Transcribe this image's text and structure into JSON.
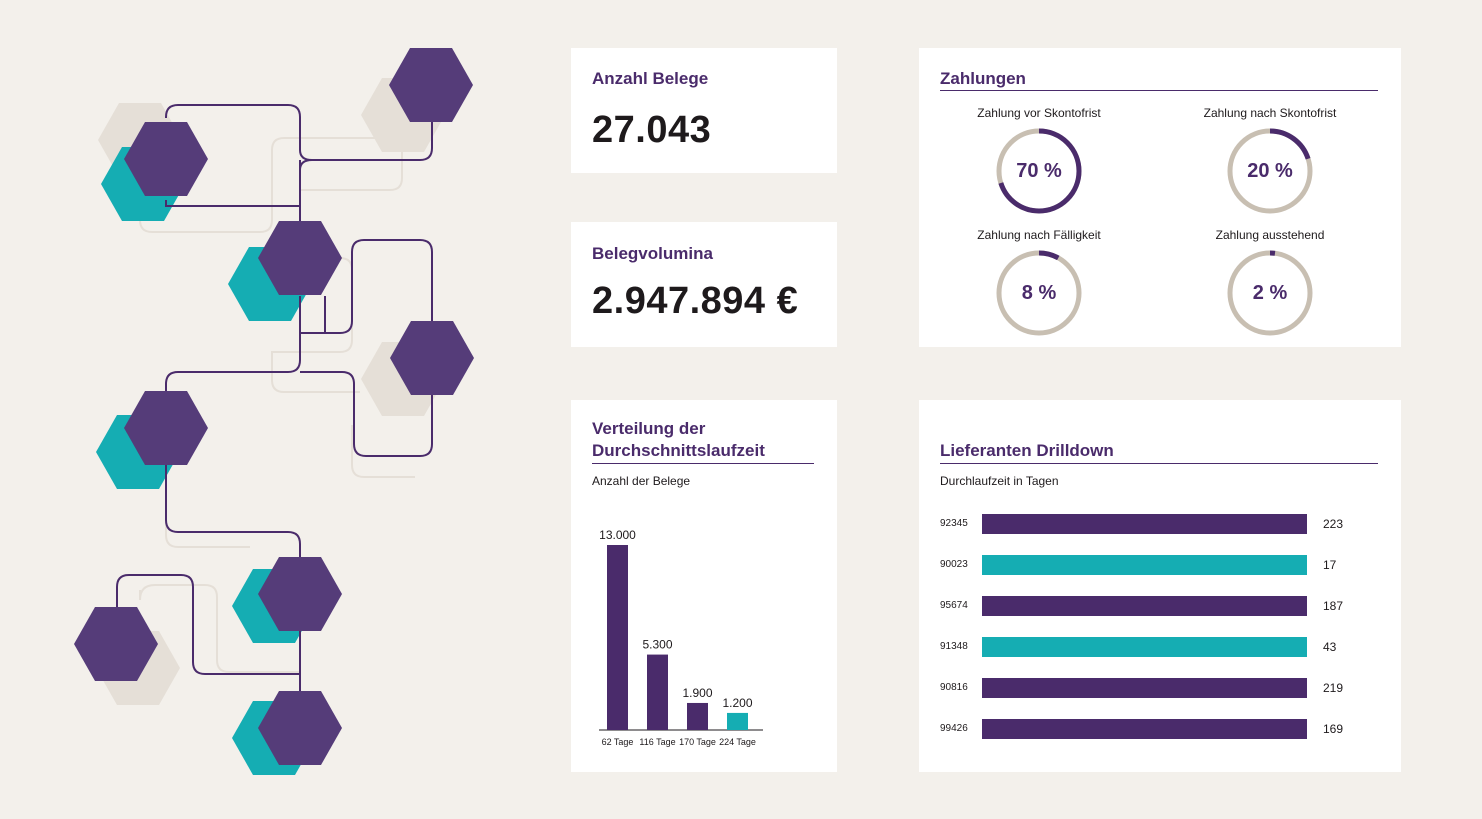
{
  "colors": {
    "purple": "#4a2b6b",
    "teal": "#15adb3",
    "beige": "#c8bfb2",
    "light": "#e8e3dc"
  },
  "documents": {
    "title": "Anzahl Belege",
    "value": "27.043"
  },
  "volume": {
    "title": "Belegvolumina",
    "value": "2.947.894 €"
  },
  "payments": {
    "title": "Zahlungen",
    "items": [
      {
        "label": "Zahlung vor Skontofrist",
        "value_text": "70 %",
        "percent": 70
      },
      {
        "label": "Zahlung nach Skontofrist",
        "value_text": "20 %",
        "percent": 20
      },
      {
        "label": "Zahlung nach Fälligkeit",
        "value_text": "8 %",
        "percent": 8
      },
      {
        "label": "Zahlung ausstehend",
        "value_text": "2 %",
        "percent": 2
      }
    ]
  },
  "distribution": {
    "title_line1": "Verteilung der",
    "title_line2": "Durchschnittslaufzeit",
    "subtitle": "Anzahl der Belege"
  },
  "drilldown": {
    "title": "Lieferanten Drilldown",
    "subtitle": "Durchlaufzeit in Tagen",
    "rows": [
      {
        "id": "92345",
        "value": "223",
        "color": "purple"
      },
      {
        "id": "90023",
        "value": "17",
        "color": "teal"
      },
      {
        "id": "95674",
        "value": "187",
        "color": "purple"
      },
      {
        "id": "91348",
        "value": "43",
        "color": "teal"
      },
      {
        "id": "90816",
        "value": "219",
        "color": "purple"
      },
      {
        "id": "99426",
        "value": "169",
        "color": "purple"
      }
    ]
  },
  "chart_data": {
    "type": "bar",
    "title": "Verteilung der Durchschnittslaufzeit",
    "ylabel": "Anzahl der Belege",
    "xlabel": "",
    "categories": [
      "62 Tage",
      "116 Tage",
      "170 Tage",
      "224 Tage"
    ],
    "values": [
      13000,
      5300,
      1900,
      1200
    ],
    "value_labels": [
      "13.000",
      "5.300",
      "1.900",
      "1.200"
    ],
    "bar_colors": [
      "purple",
      "purple",
      "purple",
      "teal"
    ],
    "ylim": [
      0,
      13000
    ]
  }
}
